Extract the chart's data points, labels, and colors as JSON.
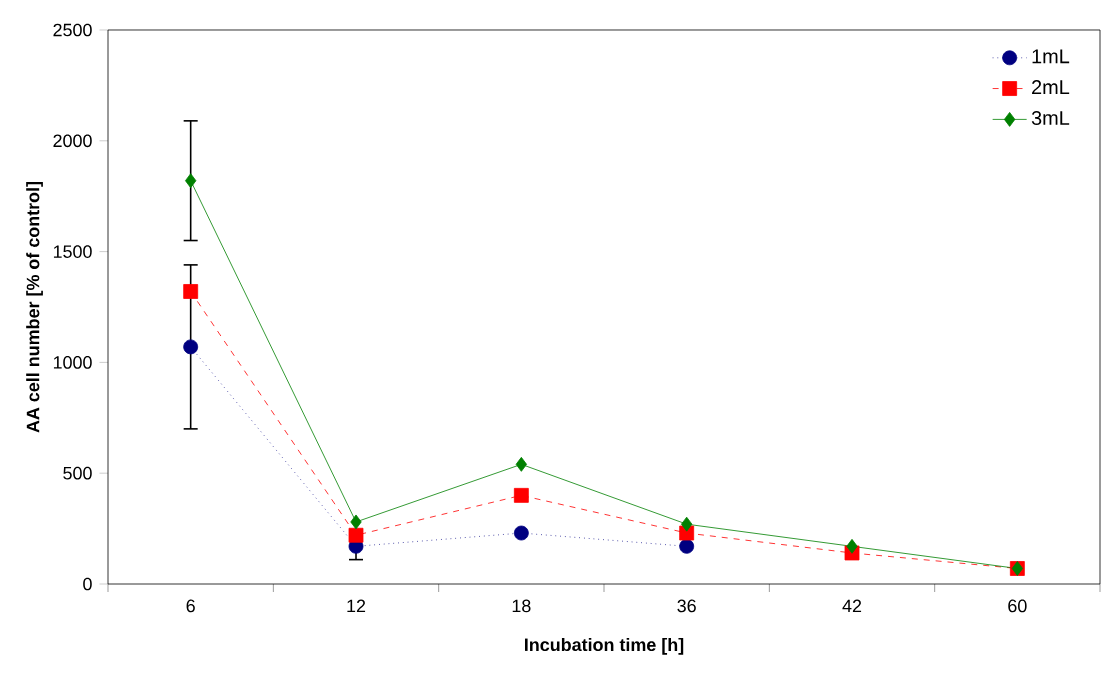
{
  "chart_data": {
    "type": "line",
    "xlabel": "Incubation time [h]",
    "ylabel": "AA cell number [% of control]",
    "categories": [
      "6",
      "12",
      "18",
      "36",
      "42",
      "60"
    ],
    "ylim": [
      0,
      2500
    ],
    "yticks": [
      0,
      500,
      1000,
      1500,
      2000,
      2500
    ],
    "grid": false,
    "legend": "top right",
    "series": [
      {
        "name": "1mL",
        "color": "#000080",
        "marker": "circle",
        "line_style": "dotted",
        "values": [
          1070,
          170,
          230,
          170,
          null,
          null
        ],
        "errors": [
          370,
          60,
          null,
          null,
          null,
          null
        ]
      },
      {
        "name": "2mL",
        "color": "#ff0000",
        "marker": "square",
        "line_style": "dashed",
        "values": [
          1320,
          220,
          400,
          230,
          140,
          70
        ]
      },
      {
        "name": "3mL",
        "color": "#008000",
        "marker": "diamond",
        "line_style": "solid",
        "values": [
          1820,
          280,
          540,
          270,
          170,
          70
        ],
        "errors": [
          270,
          null,
          null,
          null,
          null,
          null
        ]
      }
    ]
  }
}
